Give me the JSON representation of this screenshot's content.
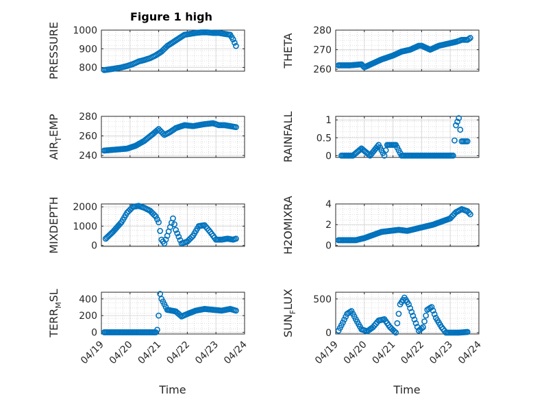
{
  "figure": {
    "title": "Figure 1 high",
    "marker_color": "#0072bd",
    "grid": "major and minor, light gray dotted"
  },
  "chart_data": [
    {
      "type": "scatter",
      "ylabel": "PRESSURE",
      "title": "Figure 1 high",
      "ylim": [
        780,
        1000
      ],
      "yticks": [
        800,
        900,
        1000
      ],
      "x": [
        0.1,
        0.3,
        0.5,
        0.7,
        0.9,
        1.1,
        1.3,
        1.5,
        1.7,
        1.9,
        2.1,
        2.3,
        2.5,
        2.7,
        2.9,
        3.1,
        3.3,
        3.5,
        3.7,
        3.9,
        4.1,
        4.3,
        4.5,
        4.6,
        4.7
      ],
      "y": [
        786,
        790,
        795,
        800,
        808,
        818,
        832,
        840,
        850,
        865,
        885,
        915,
        935,
        955,
        975,
        980,
        985,
        988,
        988,
        985,
        985,
        980,
        975,
        950,
        915
      ]
    },
    {
      "type": "scatter",
      "ylabel": "THETA",
      "ylim": [
        259,
        280
      ],
      "yticks": [
        260,
        270,
        280
      ],
      "x": [
        0.1,
        0.5,
        0.9,
        1.0,
        1.3,
        1.6,
        2.0,
        2.3,
        2.6,
        2.9,
        3.0,
        3.3,
        3.6,
        3.9,
        4.2,
        4.4,
        4.6,
        4.7
      ],
      "y": [
        262,
        262,
        262.5,
        261,
        263,
        265,
        267,
        269,
        270,
        272,
        272,
        270,
        272,
        273,
        274,
        275,
        275,
        276
      ]
    },
    {
      "type": "scatter",
      "ylabel": "AIR_TEMP",
      "ylim": [
        238,
        280
      ],
      "yticks": [
        240,
        260,
        280
      ],
      "x": [
        0.1,
        0.5,
        0.9,
        1.2,
        1.5,
        1.8,
        2.0,
        2.2,
        2.4,
        2.6,
        2.9,
        3.2,
        3.6,
        3.9,
        4.1,
        4.3,
        4.5,
        4.7
      ],
      "y": [
        245,
        246,
        247,
        250,
        255,
        262,
        267,
        261,
        264,
        268,
        271,
        270,
        272,
        273,
        271,
        271,
        270,
        269
      ]
    },
    {
      "type": "scatter",
      "ylabel": "RAINFALL",
      "ylim": [
        -0.05,
        1.1
      ],
      "yticks": [
        0,
        0.5,
        1
      ],
      "x": [
        0.2,
        0.6,
        0.9,
        1.2,
        1.5,
        1.7,
        1.8,
        2.1,
        2.3,
        2.6,
        3.0,
        3.4,
        3.8,
        4.1,
        4.2,
        4.3,
        4.4,
        4.6
      ],
      "y": [
        0,
        0,
        0.2,
        0,
        0.3,
        0,
        0.3,
        0.3,
        0,
        0,
        0,
        0,
        0,
        0,
        0.85,
        1.05,
        0.4,
        0.4
      ]
    },
    {
      "type": "scatter",
      "ylabel": "MIXDEPTH",
      "ylim": [
        -50,
        2150
      ],
      "yticks": [
        0,
        1000,
        2000
      ],
      "x": [
        0.15,
        0.4,
        0.7,
        0.9,
        1.1,
        1.3,
        1.5,
        1.7,
        1.9,
        2.0,
        2.1,
        2.2,
        2.3,
        2.5,
        2.6,
        2.8,
        3.0,
        3.2,
        3.4,
        3.6,
        3.8,
        4.0,
        4.2,
        4.4,
        4.6,
        4.7
      ],
      "y": [
        350,
        700,
        1200,
        1700,
        2000,
        2050,
        1950,
        1800,
        1500,
        1200,
        300,
        100,
        500,
        1400,
        800,
        100,
        200,
        500,
        1000,
        1050,
        700,
        300,
        300,
        350,
        300,
        350
      ]
    },
    {
      "type": "scatter",
      "ylabel": "H2OMIXRA",
      "ylim": [
        -0.1,
        4
      ],
      "yticks": [
        0,
        2,
        4
      ],
      "x": [
        0.1,
        0.4,
        0.7,
        1.0,
        1.3,
        1.6,
        1.9,
        2.2,
        2.5,
        2.8,
        3.1,
        3.4,
        3.7,
        4.0,
        4.2,
        4.4,
        4.6,
        4.7
      ],
      "y": [
        0.5,
        0.5,
        0.5,
        0.7,
        1.0,
        1.3,
        1.4,
        1.5,
        1.4,
        1.6,
        1.8,
        2.0,
        2.3,
        2.6,
        3.2,
        3.5,
        3.3,
        3.0
      ]
    },
    {
      "type": "scatter",
      "ylabel": "TERR_MSL",
      "ylim": [
        -20,
        480
      ],
      "yticks": [
        0,
        200,
        400
      ],
      "xticklabels": [
        "04/19",
        "04/20",
        "04/21",
        "04/22",
        "04/23",
        "04/24"
      ],
      "xlabel": "Time",
      "x": [
        0.1,
        0.5,
        0.9,
        1.3,
        1.6,
        1.9,
        1.95,
        2.0,
        2.05,
        2.1,
        2.3,
        2.6,
        2.8,
        3.0,
        3.3,
        3.6,
        3.9,
        4.2,
        4.5,
        4.7
      ],
      "y": [
        0,
        0,
        0,
        0,
        0,
        0,
        30,
        200,
        460,
        400,
        270,
        250,
        190,
        220,
        260,
        280,
        270,
        260,
        280,
        260
      ]
    },
    {
      "type": "scatter",
      "ylabel": "SUN_FLUX",
      "ylim": [
        -20,
        600
      ],
      "yticks": [
        0,
        500
      ],
      "xticklabels": [
        "04/19",
        "04/20",
        "04/21",
        "04/22",
        "04/23",
        "04/24"
      ],
      "xlabel": "Time",
      "x": [
        0.1,
        0.25,
        0.4,
        0.55,
        0.7,
        0.9,
        1.1,
        1.3,
        1.5,
        1.7,
        1.9,
        2.1,
        2.25,
        2.4,
        2.55,
        2.7,
        2.9,
        3.05,
        3.2,
        3.35,
        3.5,
        3.7,
        3.85,
        4.0,
        4.1,
        4.3,
        4.6
      ],
      "y": [
        30,
        150,
        280,
        320,
        200,
        50,
        20,
        80,
        180,
        200,
        80,
        0,
        420,
        520,
        420,
        250,
        30,
        80,
        340,
        380,
        220,
        80,
        0,
        0,
        0,
        0,
        10
      ]
    }
  ]
}
